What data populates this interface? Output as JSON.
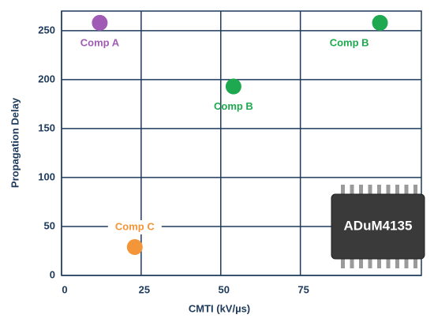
{
  "chart_data": {
    "type": "scatter",
    "x_label": "CMTI (kV/µs)",
    "y_label": "Propagation Delay",
    "x": [
      12,
      54,
      100,
      23
    ],
    "values": [
      258,
      193,
      258,
      29
    ],
    "labels": [
      "Comp A",
      "Comp B",
      "Comp B",
      "Comp C"
    ],
    "colors": [
      "#a05cb5",
      "#1ea84f",
      "#1ea84f",
      "#f3963a"
    ],
    "xlim": [
      0,
      113
    ],
    "ylim": [
      0,
      270
    ],
    "xticks": [
      0,
      25,
      50,
      75
    ],
    "yticks": [
      0,
      50,
      100,
      150,
      200,
      250
    ],
    "grid": true,
    "annotation": "ADuM4135"
  }
}
